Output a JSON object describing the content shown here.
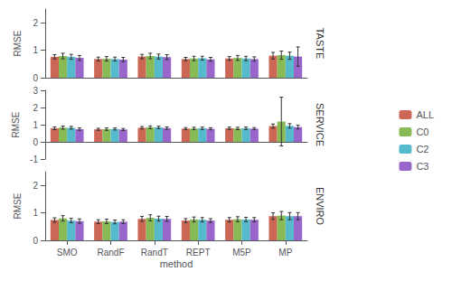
{
  "chart_data": [
    {
      "type": "bar",
      "title": "TASTE",
      "ylabel": "RMSE",
      "categories": [
        "SMO",
        "RandF",
        "RandT",
        "REPT",
        "M5P",
        "MP"
      ],
      "series": [
        {
          "name": "ALL",
          "color": "#cc6655",
          "values": [
            0.76,
            0.68,
            0.77,
            0.68,
            0.7,
            0.8
          ],
          "errors": [
            0.08,
            0.07,
            0.08,
            0.06,
            0.07,
            0.12
          ]
        },
        {
          "name": "C0",
          "color": "#88bb55",
          "values": [
            0.79,
            0.69,
            0.79,
            0.7,
            0.72,
            0.82
          ],
          "errors": [
            0.1,
            0.08,
            0.1,
            0.08,
            0.09,
            0.15
          ]
        },
        {
          "name": "C2",
          "color": "#55bbcc",
          "values": [
            0.76,
            0.68,
            0.77,
            0.71,
            0.7,
            0.8
          ],
          "errors": [
            0.09,
            0.07,
            0.09,
            0.07,
            0.08,
            0.13
          ]
        },
        {
          "name": "C3",
          "color": "#9966cc",
          "values": [
            0.72,
            0.66,
            0.75,
            0.67,
            0.68,
            0.77
          ],
          "errors": [
            0.09,
            0.08,
            0.09,
            0.07,
            0.08,
            0.35
          ]
        }
      ],
      "ylim": [
        0,
        2.5
      ],
      "yticks": [
        0,
        1,
        2
      ],
      "grid": false,
      "tick_labels": "y"
    },
    {
      "type": "bar",
      "title": "SERVICE",
      "ylabel": "RMSE",
      "categories": [
        "SMO",
        "RandF",
        "RandT",
        "REPT",
        "M5P",
        "MP"
      ],
      "series": [
        {
          "name": "ALL",
          "color": "#cc6655",
          "values": [
            0.79,
            0.73,
            0.82,
            0.77,
            0.79,
            0.92
          ],
          "errors": [
            0.08,
            0.06,
            0.07,
            0.06,
            0.07,
            0.12
          ]
        },
        {
          "name": "C0",
          "color": "#88bb55",
          "values": [
            0.83,
            0.74,
            0.85,
            0.78,
            0.78,
            1.18
          ],
          "errors": [
            0.09,
            0.07,
            0.08,
            0.07,
            0.07,
            1.42
          ]
        },
        {
          "name": "C2",
          "color": "#55bbcc",
          "values": [
            0.82,
            0.75,
            0.84,
            0.79,
            0.79,
            0.93
          ],
          "errors": [
            0.08,
            0.06,
            0.07,
            0.07,
            0.07,
            0.13
          ]
        },
        {
          "name": "C3",
          "color": "#9966cc",
          "values": [
            0.74,
            0.72,
            0.8,
            0.76,
            0.77,
            0.86
          ],
          "errors": [
            0.07,
            0.06,
            0.07,
            0.06,
            0.06,
            0.11
          ]
        }
      ],
      "ylim": [
        -1,
        3
      ],
      "yticks": [
        -1,
        0,
        1,
        2,
        3
      ],
      "grid": false,
      "tick_labels": "y",
      "legend": "right"
    },
    {
      "type": "bar",
      "title": "ENVIRO",
      "ylabel": "RMSE",
      "xlabel": "method",
      "categories": [
        "SMO",
        "RandF",
        "RandT",
        "REPT",
        "M5P",
        "MP"
      ],
      "series": [
        {
          "name": "ALL",
          "color": "#cc6655",
          "values": [
            0.74,
            0.68,
            0.78,
            0.72,
            0.75,
            0.88
          ],
          "errors": [
            0.08,
            0.07,
            0.09,
            0.07,
            0.08,
            0.12
          ]
        },
        {
          "name": "C0",
          "color": "#88bb55",
          "values": [
            0.8,
            0.69,
            0.82,
            0.76,
            0.77,
            0.9
          ],
          "errors": [
            0.1,
            0.08,
            0.11,
            0.09,
            0.09,
            0.15
          ]
        },
        {
          "name": "C2",
          "color": "#55bbcc",
          "values": [
            0.72,
            0.67,
            0.79,
            0.75,
            0.76,
            0.88
          ],
          "errors": [
            0.08,
            0.07,
            0.09,
            0.08,
            0.08,
            0.13
          ]
        },
        {
          "name": "C3",
          "color": "#9966cc",
          "values": [
            0.7,
            0.68,
            0.78,
            0.72,
            0.75,
            0.88
          ],
          "errors": [
            0.08,
            0.07,
            0.09,
            0.07,
            0.08,
            0.13
          ]
        }
      ],
      "ylim": [
        0,
        2.5
      ],
      "yticks": [
        0,
        1,
        2
      ],
      "grid": false
    }
  ]
}
